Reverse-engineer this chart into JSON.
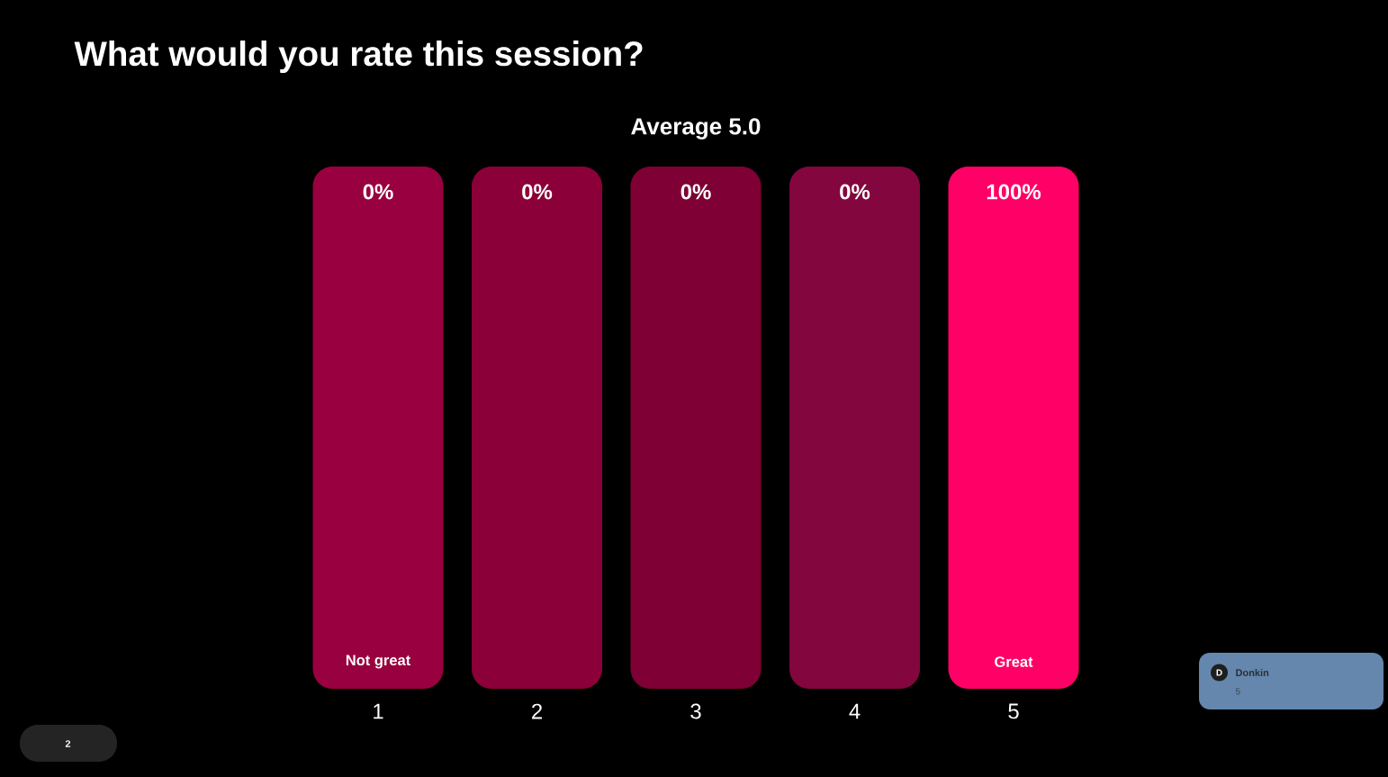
{
  "chart_data": {
    "type": "bar",
    "title": "What would you rate this session?",
    "subtitle": "Average 5.0",
    "categories": [
      "1",
      "2",
      "3",
      "4",
      "5"
    ],
    "stacked": true,
    "ylim": [
      0,
      100
    ],
    "tick_labels": "x",
    "series": [
      {
        "color": "#ff0066",
        "values": [
          0,
          0,
          0,
          0,
          100
        ],
        "value_labels": [
          "0%",
          "0%",
          "0%",
          "0%",
          "100%"
        ]
      },
      {
        "colors": [
          "#99003f",
          "#8b0038",
          "#7e0034",
          "#83063e",
          "#800038"
        ],
        "values": [
          100,
          100,
          100,
          100,
          0
        ]
      }
    ],
    "annotations": [
      "Not great",
      "Great",
      "D",
      "Donkin",
      "5",
      "2"
    ]
  }
}
